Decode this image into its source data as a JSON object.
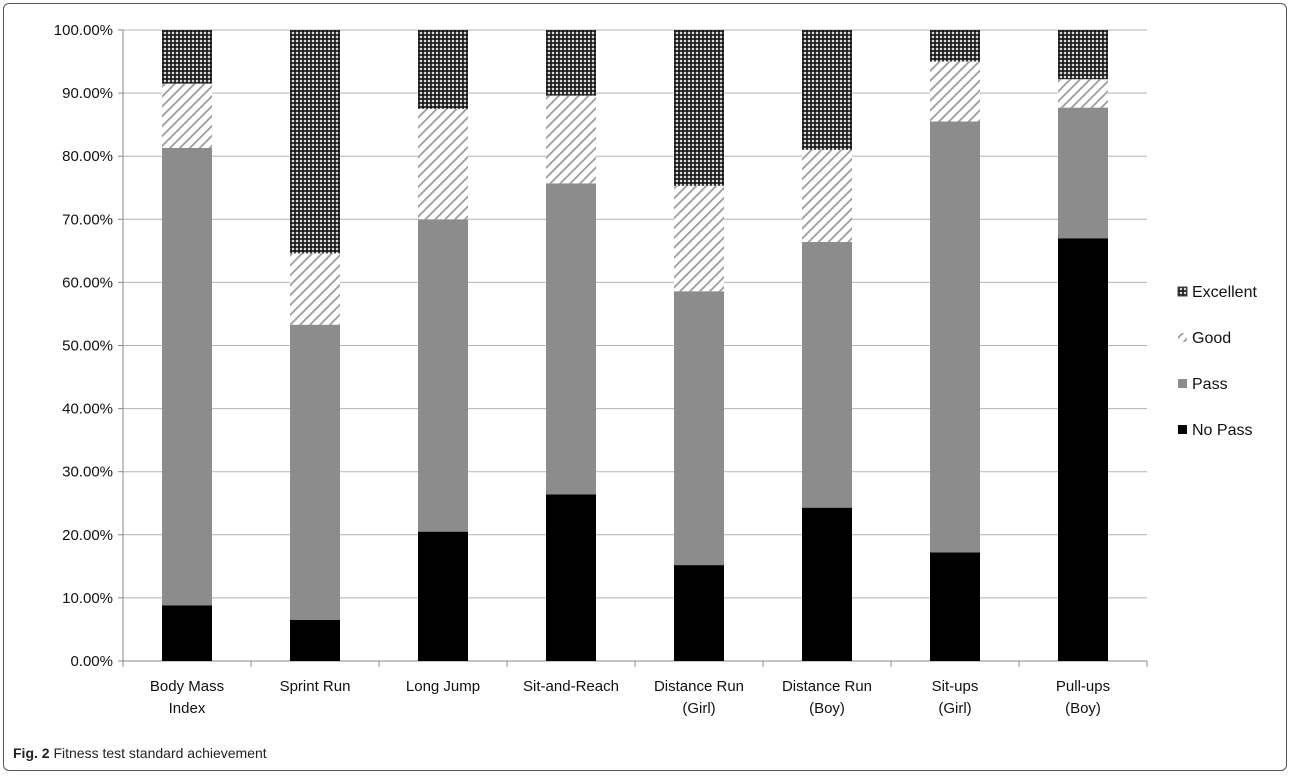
{
  "chart_data": {
    "type": "bar",
    "stacked": true,
    "percent": true,
    "categories": [
      [
        "Body Mass",
        "Index"
      ],
      [
        "Sprint Run"
      ],
      [
        "Long Jump"
      ],
      [
        "Sit-and-Reach"
      ],
      [
        "Distance Run",
        "(Girl)"
      ],
      [
        "Distance Run",
        "(Boy)"
      ],
      [
        "Sit-ups",
        "(Girl)"
      ],
      [
        "Pull-ups",
        "(Boy)"
      ]
    ],
    "series": [
      {
        "name": "No Pass",
        "values": [
          8.8,
          6.5,
          20.5,
          26.4,
          15.2,
          24.3,
          17.2,
          67.0
        ],
        "color": "#000000",
        "pattern": "solid"
      },
      {
        "name": "Pass",
        "values": [
          72.5,
          46.8,
          49.5,
          49.3,
          43.4,
          42.1,
          68.3,
          20.7
        ],
        "color": "#8c8c8c",
        "pattern": "solid"
      },
      {
        "name": "Good",
        "values": [
          10.2,
          11.3,
          17.5,
          13.9,
          16.7,
          14.6,
          9.5,
          4.5
        ],
        "color": "#a6a6a6",
        "pattern": "diagonal-hatch"
      },
      {
        "name": "Excellent",
        "values": [
          8.5,
          35.4,
          12.5,
          10.4,
          24.7,
          19.0,
          5.0,
          7.8
        ],
        "color": "#2b2b2b",
        "pattern": "crosshatch"
      }
    ],
    "legend_order": [
      "Excellent",
      "Good",
      "Pass",
      "No Pass"
    ],
    "ylim": [
      0,
      100
    ],
    "y_ticks": [
      "0.00%",
      "10.00%",
      "20.00%",
      "30.00%",
      "40.00%",
      "50.00%",
      "60.00%",
      "70.00%",
      "80.00%",
      "90.00%",
      "100.00%"
    ],
    "grid": true,
    "legend_position": "right"
  },
  "caption": {
    "label": "Fig. 2",
    "text": "Fitness test standard achievement"
  }
}
